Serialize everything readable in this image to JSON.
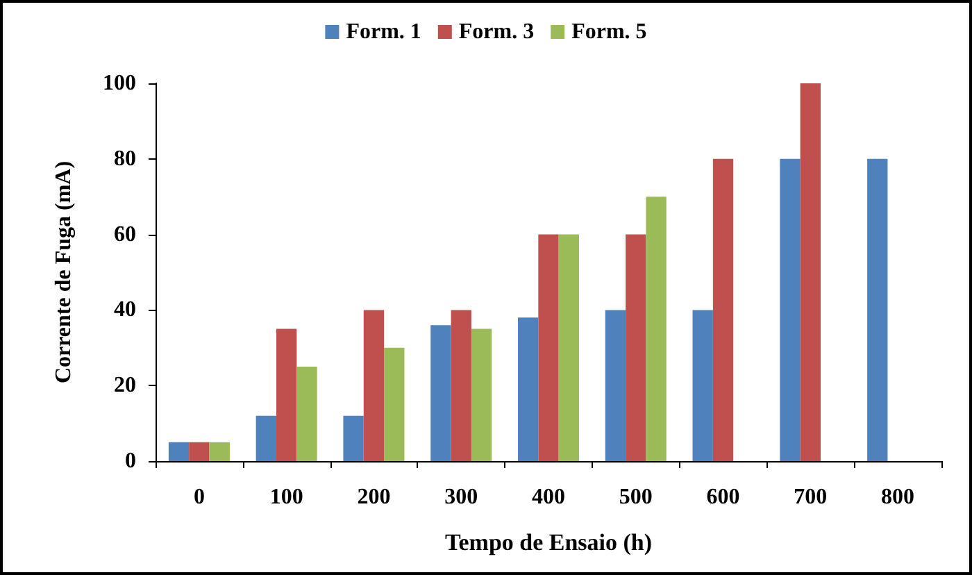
{
  "chart_data": {
    "type": "bar",
    "xlabel": "Tempo de Ensaio (h)",
    "ylabel": "Corrente de Fuga (mA)",
    "categories": [
      "0",
      "100",
      "200",
      "300",
      "400",
      "500",
      "600",
      "700",
      "800"
    ],
    "series": [
      {
        "name": "Form. 1",
        "color": "#4f81bd",
        "values": [
          5,
          12,
          12,
          36,
          38,
          40,
          40,
          80,
          80
        ]
      },
      {
        "name": "Form. 3",
        "color": "#c0504d",
        "values": [
          5,
          35,
          40,
          40,
          60,
          60,
          80,
          100,
          null
        ]
      },
      {
        "name": "Form. 5",
        "color": "#9bbb59",
        "values": [
          5,
          25,
          30,
          35,
          60,
          70,
          null,
          null,
          null
        ]
      }
    ],
    "ylim": [
      0,
      100
    ],
    "yticks": [
      0,
      20,
      40,
      60,
      80,
      100
    ],
    "grid": false,
    "legend": "top"
  }
}
